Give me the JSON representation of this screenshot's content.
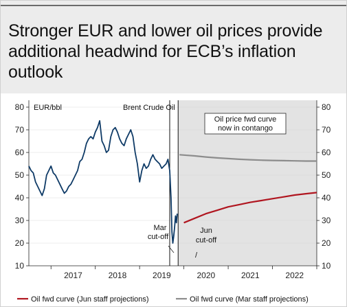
{
  "title": "Stronger EUR  and lower oil prices provide additional headwind for ECB’s inflation outlook",
  "chart_data": {
    "type": "line",
    "title": "Brent Crude Oil",
    "ylabel": "EUR/bbl",
    "ylim": [
      10,
      80
    ],
    "yticks": [
      10,
      20,
      30,
      40,
      50,
      60,
      70,
      80
    ],
    "xlim": [
      2016.5,
      2023.0
    ],
    "x_tick_labels": [
      "2017",
      "2018",
      "2019",
      "2020",
      "2021",
      "2022"
    ],
    "x_tick_label_positions": [
      2017.0,
      2018.0,
      2019.0,
      2020.0,
      2021.0,
      2022.0
    ],
    "projection_region_start": 2019.87,
    "vlines": [
      {
        "x": 2019.68
      },
      {
        "x": 2019.87
      }
    ],
    "annotations": {
      "contango": [
        "Oil price fwd curve",
        "now in contango"
      ],
      "mar_cutoff": [
        "Mar",
        "cut-off"
      ],
      "jun_cutoff": [
        "Jun",
        "cut-off"
      ],
      "jun_slash": "/"
    },
    "legend": {
      "position": "bottom",
      "entries": [
        {
          "name": "Oil fwd curve (Jun staff projections)",
          "color": "#b0151f"
        },
        {
          "name": "Oil fwd curve (Mar staff projections)",
          "color": "#8c8c8c"
        }
      ]
    },
    "colors": {
      "brent": "#0e3a66",
      "jun": "#b0151f",
      "mar": "#8c8c8c",
      "shade": "#e3e3e3"
    },
    "series": [
      {
        "name": "Brent Crude Oil",
        "x": [
          2016.5,
          2016.55,
          2016.6,
          2016.65,
          2016.7,
          2016.75,
          2016.8,
          2016.85,
          2016.9,
          2016.95,
          2017.0,
          2017.05,
          2017.1,
          2017.15,
          2017.2,
          2017.25,
          2017.3,
          2017.35,
          2017.4,
          2017.45,
          2017.5,
          2017.55,
          2017.6,
          2017.65,
          2017.7,
          2017.75,
          2017.8,
          2017.85,
          2017.9,
          2017.95,
          2018.0,
          2018.05,
          2018.1,
          2018.15,
          2018.2,
          2018.25,
          2018.3,
          2018.35,
          2018.4,
          2018.45,
          2018.5,
          2018.55,
          2018.6,
          2018.65,
          2018.7,
          2018.75,
          2018.8,
          2018.85,
          2018.9,
          2018.95,
          2019.0,
          2019.05,
          2019.1,
          2019.15,
          2019.2,
          2019.25,
          2019.3,
          2019.35,
          2019.4,
          2019.45,
          2019.5,
          2019.55,
          2019.6,
          2019.64,
          2019.68,
          2019.71,
          2019.73,
          2019.75,
          2019.77,
          2019.79,
          2019.81,
          2019.83,
          2019.85
        ],
        "values": [
          54,
          52,
          51,
          47,
          45,
          43,
          41,
          44,
          50,
          52,
          54,
          51,
          50,
          48,
          46,
          44,
          42,
          43,
          45,
          46,
          48,
          50,
          52,
          56,
          57,
          60,
          64,
          66,
          67,
          66,
          69,
          71,
          74,
          65,
          63,
          60,
          61,
          67,
          70,
          71,
          69,
          66,
          64,
          63,
          66,
          68,
          70,
          67,
          60,
          55,
          47,
          52,
          55,
          53,
          54,
          57,
          59,
          57,
          56,
          55,
          53,
          54,
          55,
          57,
          52,
          40,
          25,
          20,
          23,
          27,
          32,
          29,
          33
        ]
      },
      {
        "name": "Oil fwd curve (Jun staff projections)",
        "x": [
          2020.0,
          2020.25,
          2020.5,
          2020.75,
          2021.0,
          2021.25,
          2021.5,
          2021.75,
          2022.0,
          2022.25,
          2022.5,
          2022.75,
          2023.0
        ],
        "values": [
          29,
          31,
          33,
          34.5,
          36,
          37,
          38,
          38.8,
          39.6,
          40.4,
          41.2,
          41.8,
          42.3
        ]
      },
      {
        "name": "Oil fwd curve (Mar staff projections)",
        "x": [
          2019.9,
          2020.25,
          2020.5,
          2020.75,
          2021.0,
          2021.25,
          2021.5,
          2021.75,
          2022.0,
          2022.25,
          2022.5,
          2022.75,
          2023.0
        ],
        "values": [
          59,
          58.5,
          58,
          57.6,
          57.3,
          57,
          56.8,
          56.6,
          56.5,
          56.4,
          56.3,
          56.2,
          56.2
        ]
      }
    ]
  }
}
